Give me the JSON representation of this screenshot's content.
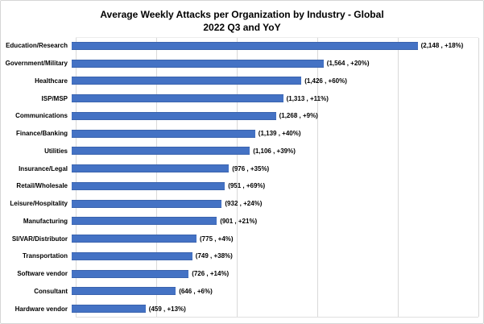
{
  "chart_data": {
    "type": "bar",
    "orientation": "horizontal",
    "title": "Average Weekly Attacks per Organization by Industry - Global",
    "subtitle": "2022 Q3 and YoY",
    "categories": [
      "Education/Research",
      "Government/Military",
      "Healthcare",
      "ISP/MSP",
      "Communications",
      "Finance/Banking",
      "Utilities",
      "Insurance/Legal",
      "Retail/Wholesale",
      "Leisure/Hospitality",
      "Manufacturing",
      "SI/VAR/Distributor",
      "Transportation",
      "Software vendor",
      "Consultant",
      "Hardware vendor"
    ],
    "values": [
      2148,
      1564,
      1426,
      1313,
      1268,
      1139,
      1106,
      976,
      951,
      932,
      901,
      775,
      749,
      726,
      646,
      459
    ],
    "yoy_change": [
      "+18%",
      "+20%",
      "+60%",
      "+11%",
      "+9%",
      "+40%",
      "+39%",
      "+35%",
      "+69%",
      "+24%",
      "+21%",
      "+4%",
      "+38%",
      "+14%",
      "+6%",
      "+13%"
    ],
    "data_labels": [
      "(2,148 , +18%)",
      "(1,564 , +20%)",
      "(1,426 , +60%)",
      "(1,313 , +11%)",
      "(1,268 , +9%)",
      "(1,139 , +40%)",
      "(1,106 , +39%)",
      "(976 , +35%)",
      "(951 , +69%)",
      "(932 , +24%)",
      "(901 , +21%)",
      "(775 , +4%)",
      "(749 , +38%)",
      "(726 , +14%)",
      "(646 , +6%)",
      "(459 , +13%)"
    ],
    "xlabel": "",
    "ylabel": "",
    "xlim": [
      0,
      2500
    ],
    "gridline_interval": 500,
    "grid": "vertical-only",
    "legend": "none",
    "axis_tick_labels_visible": false,
    "bar_color": "#4472C4",
    "gridline_color": "#D9D9D9",
    "title_color": "#000000"
  }
}
